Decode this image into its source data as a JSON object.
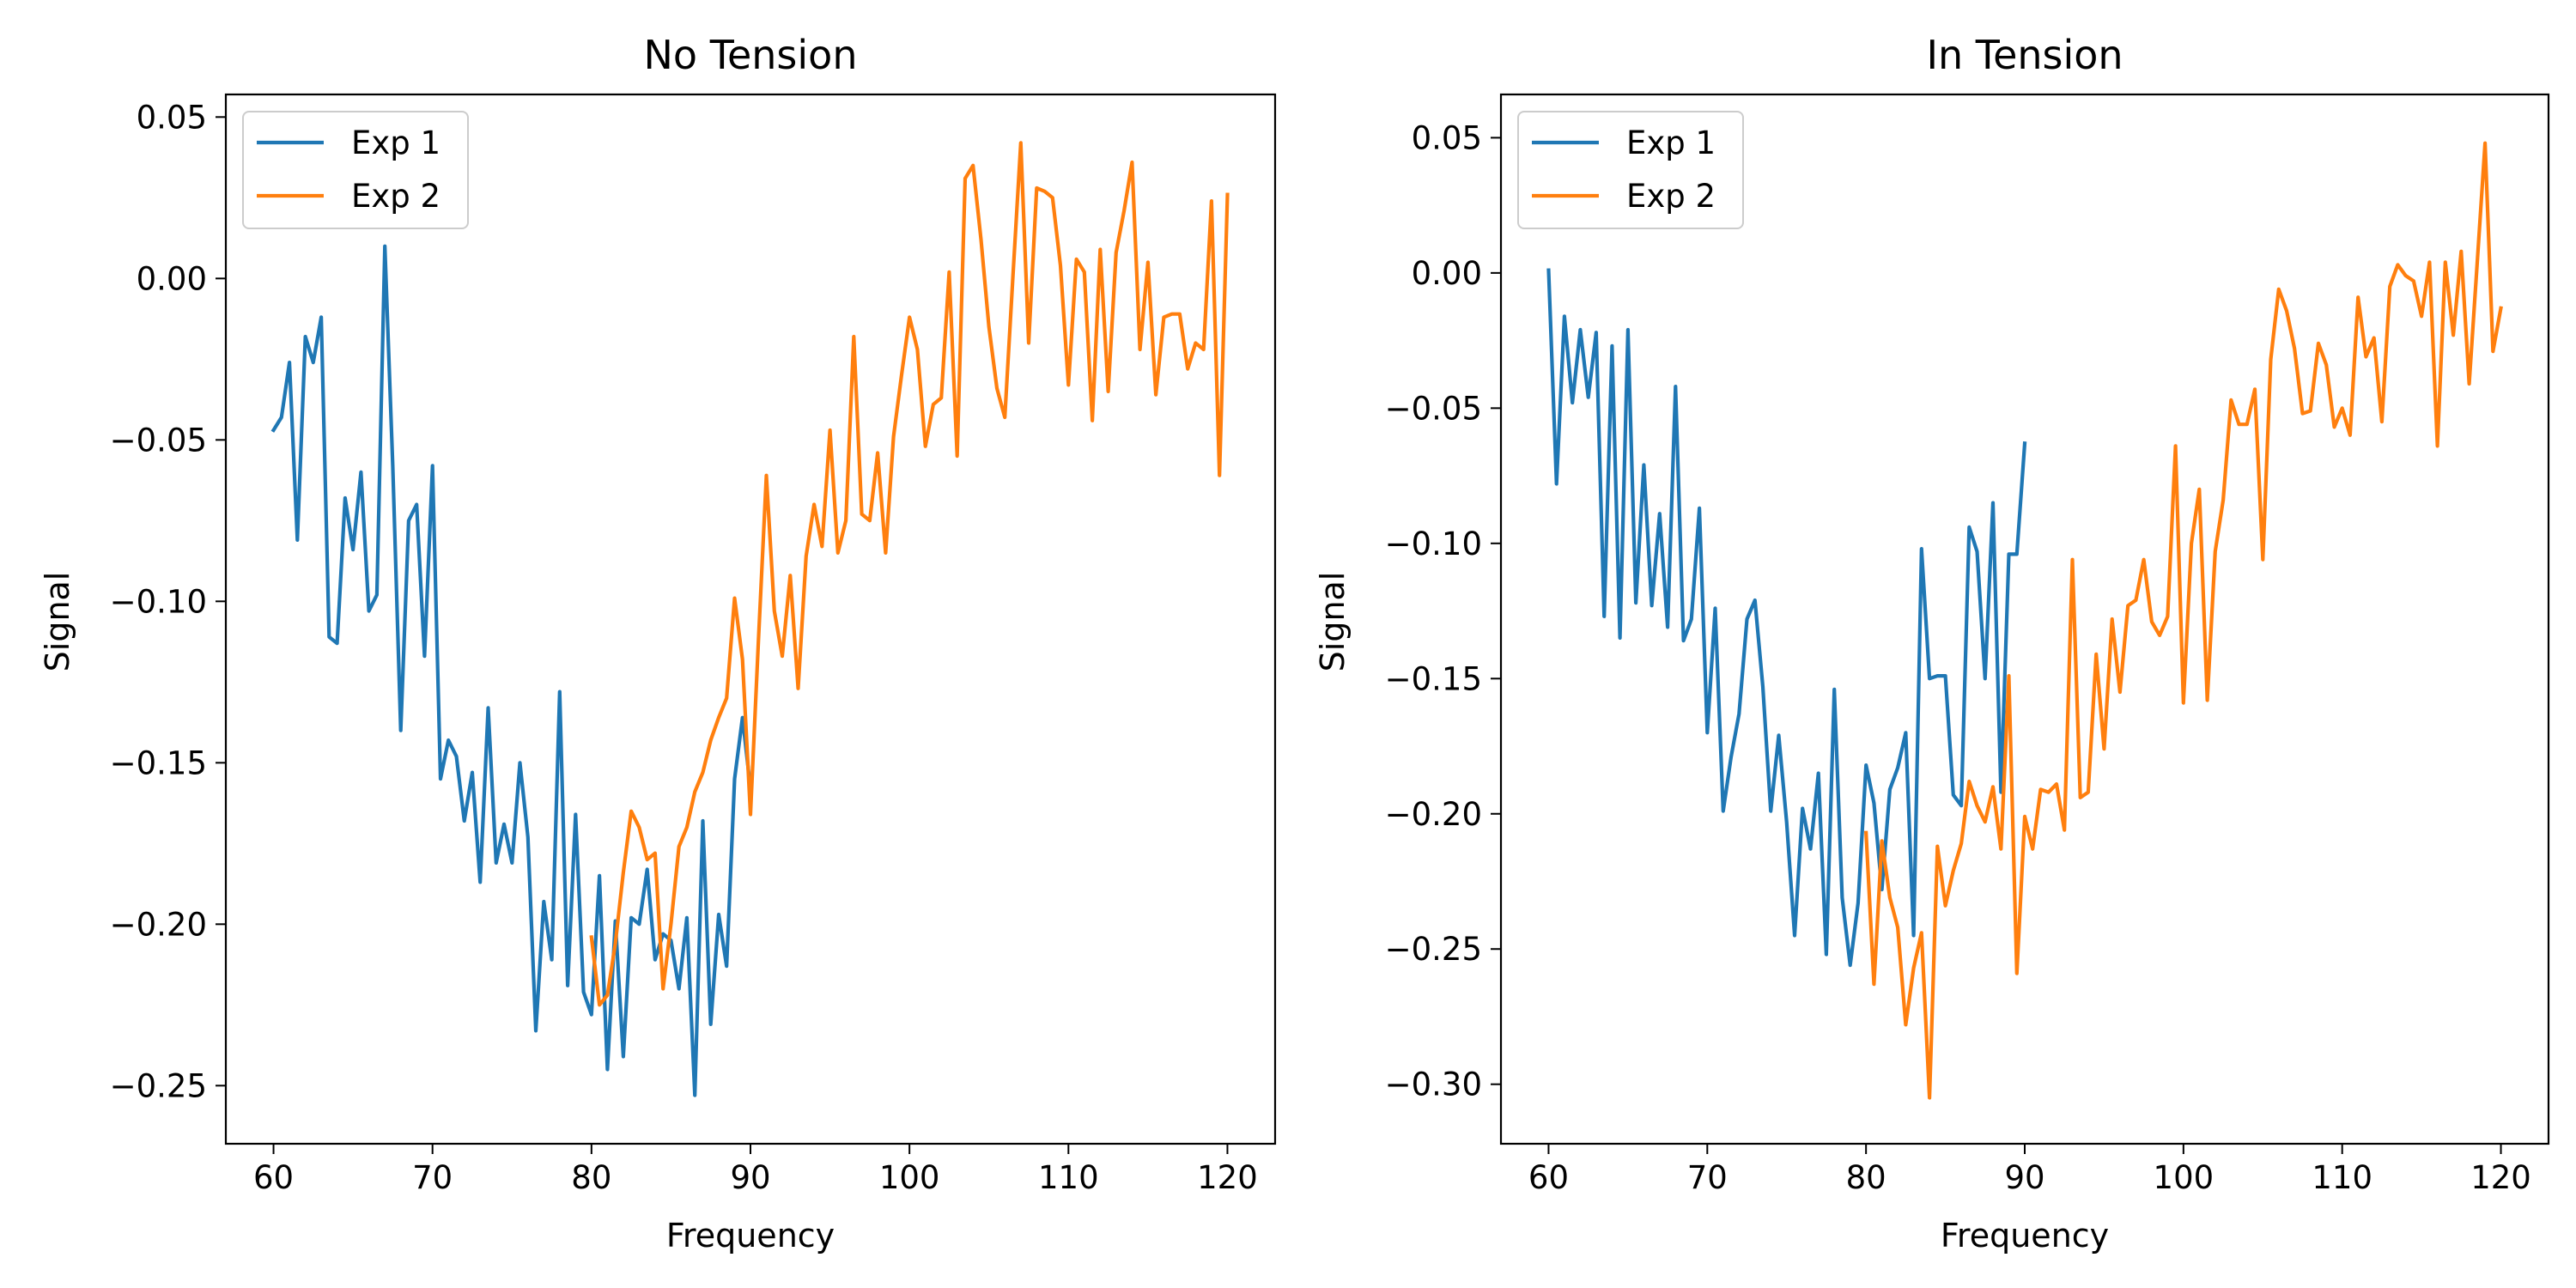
{
  "chart_data": [
    {
      "type": "line",
      "title": "No Tension",
      "xlabel": "Frequency",
      "ylabel": "Signal",
      "xlim": [
        57,
        123
      ],
      "ylim": [
        -0.268,
        0.057
      ],
      "xticks": [
        60,
        70,
        80,
        90,
        100,
        110,
        120
      ],
      "yticks": [
        -0.25,
        -0.2,
        -0.15,
        -0.1,
        -0.05,
        0.0,
        0.05
      ],
      "xtick_labels": [
        "60",
        "70",
        "80",
        "90",
        "100",
        "110",
        "120"
      ],
      "ytick_labels": [
        "−0.25",
        "−0.20",
        "−0.15",
        "−0.10",
        "−0.05",
        "0.00",
        "0.05"
      ],
      "grid": false,
      "legend": "top-left",
      "series": [
        {
          "name": "Exp 1",
          "color": "#1f77b4",
          "x": [
            60,
            60.5,
            61,
            61.5,
            62,
            62.5,
            63,
            63.5,
            64,
            64.5,
            65,
            65.5,
            66,
            66.5,
            67,
            67.5,
            68,
            68.5,
            69,
            69.5,
            70,
            70.5,
            71,
            71.5,
            72,
            72.5,
            73,
            73.5,
            74,
            74.5,
            75,
            75.5,
            76,
            76.5,
            77,
            77.5,
            78,
            78.5,
            79,
            79.5,
            80,
            80.5,
            81,
            81.5,
            82,
            82.5,
            83,
            83.5,
            84,
            84.5,
            85,
            85.5,
            86,
            86.5,
            87,
            87.5,
            88,
            88.5,
            89,
            89.5,
            90
          ],
          "y": [
            -0.047,
            -0.043,
            -0.026,
            -0.081,
            -0.018,
            -0.026,
            -0.012,
            -0.111,
            -0.113,
            -0.068,
            -0.084,
            -0.06,
            -0.103,
            -0.098,
            0.01,
            -0.058,
            -0.14,
            -0.075,
            -0.07,
            -0.117,
            -0.058,
            -0.155,
            -0.143,
            -0.148,
            -0.168,
            -0.153,
            -0.187,
            -0.133,
            -0.181,
            -0.169,
            -0.181,
            -0.15,
            -0.173,
            -0.233,
            -0.193,
            -0.211,
            -0.128,
            -0.219,
            -0.166,
            -0.221,
            -0.228,
            -0.185,
            -0.245,
            -0.199,
            -0.241,
            -0.198,
            -0.2,
            -0.183,
            -0.211,
            -0.203,
            -0.205,
            -0.22,
            -0.198,
            -0.253,
            -0.168,
            -0.231,
            -0.197,
            -0.213,
            -0.155,
            -0.136,
            -0.158
          ],
          "points_note": "approximate"
        },
        {
          "name": "Exp 2",
          "color": "#ff7f0e",
          "x": [
            80,
            80.5,
            81,
            81.5,
            82,
            82.5,
            83,
            83.5,
            84,
            84.5,
            85,
            85.5,
            86,
            86.5,
            87,
            87.5,
            88,
            88.5,
            89,
            89.5,
            90,
            90.5,
            91,
            91.5,
            92,
            92.5,
            93,
            93.5,
            94,
            94.5,
            95,
            95.5,
            96,
            96.5,
            97,
            97.5,
            98,
            98.5,
            99,
            99.5,
            100,
            100.5,
            101,
            101.5,
            102,
            102.5,
            103,
            103.5,
            104,
            104.5,
            105,
            105.5,
            106,
            106.5,
            107,
            107.5,
            108,
            108.5,
            109,
            109.5,
            110,
            110.5,
            111,
            111.5,
            112,
            112.5,
            113,
            113.5,
            114,
            114.5,
            115,
            115.5,
            116,
            116.5,
            117,
            117.5,
            118,
            118.5,
            119,
            119.5,
            120
          ],
          "y": [
            -0.204,
            -0.225,
            -0.222,
            -0.206,
            -0.184,
            -0.165,
            -0.17,
            -0.18,
            -0.178,
            -0.22,
            -0.2,
            -0.176,
            -0.17,
            -0.159,
            -0.153,
            -0.143,
            -0.136,
            -0.13,
            -0.099,
            -0.118,
            -0.166,
            -0.112,
            -0.061,
            -0.103,
            -0.117,
            -0.092,
            -0.127,
            -0.086,
            -0.07,
            -0.083,
            -0.047,
            -0.085,
            -0.075,
            -0.018,
            -0.073,
            -0.075,
            -0.054,
            -0.085,
            -0.049,
            -0.03,
            -0.012,
            -0.022,
            -0.052,
            -0.039,
            -0.037,
            0.002,
            -0.055,
            0.031,
            0.035,
            0.012,
            -0.015,
            -0.034,
            -0.043,
            0.0,
            0.042,
            -0.02,
            0.028,
            0.027,
            0.025,
            0.004,
            -0.033,
            0.006,
            0.002,
            -0.044,
            0.009,
            -0.035,
            0.008,
            0.021,
            0.036,
            -0.022,
            0.005,
            -0.036,
            -0.012,
            -0.011,
            -0.011,
            -0.028,
            -0.02,
            -0.022,
            0.024,
            -0.061,
            0.026
          ],
          "points_note": "approximate"
        }
      ]
    },
    {
      "type": "line",
      "title": "In Tension",
      "xlabel": "Frequency",
      "ylabel": "Signal",
      "xlim": [
        57,
        123
      ],
      "ylim": [
        -0.322,
        0.066
      ],
      "xticks": [
        60,
        70,
        80,
        90,
        100,
        110,
        120
      ],
      "yticks": [
        -0.3,
        -0.25,
        -0.2,
        -0.15,
        -0.1,
        -0.05,
        0.0,
        0.05
      ],
      "xtick_labels": [
        "60",
        "70",
        "80",
        "90",
        "100",
        "110",
        "120"
      ],
      "ytick_labels": [
        "−0.30",
        "−0.25",
        "−0.20",
        "−0.15",
        "−0.10",
        "−0.05",
        "0.00",
        "0.05"
      ],
      "grid": false,
      "legend": "top-left",
      "series": [
        {
          "name": "Exp 1",
          "color": "#1f77b4",
          "x": [
            60,
            60.5,
            61,
            61.5,
            62,
            62.5,
            63,
            63.5,
            64,
            64.5,
            65,
            65.5,
            66,
            66.5,
            67,
            67.5,
            68,
            68.5,
            69,
            69.5,
            70,
            70.5,
            71,
            71.5,
            72,
            72.5,
            73,
            73.5,
            74,
            74.5,
            75,
            75.5,
            76,
            76.5,
            77,
            77.5,
            78,
            78.5,
            79,
            79.5,
            80,
            80.5,
            81,
            81.5,
            82,
            82.5,
            83,
            83.5,
            84,
            84.5,
            85,
            85.5,
            86,
            86.5,
            87,
            87.5,
            88,
            88.5,
            89,
            89.5,
            90
          ],
          "y": [
            0.001,
            -0.078,
            -0.016,
            -0.048,
            -0.021,
            -0.046,
            -0.022,
            -0.127,
            -0.027,
            -0.135,
            -0.021,
            -0.122,
            -0.071,
            -0.123,
            -0.089,
            -0.131,
            -0.042,
            -0.136,
            -0.128,
            -0.087,
            -0.17,
            -0.124,
            -0.199,
            -0.179,
            -0.163,
            -0.128,
            -0.121,
            -0.153,
            -0.199,
            -0.171,
            -0.203,
            -0.245,
            -0.198,
            -0.213,
            -0.185,
            -0.252,
            -0.154,
            -0.231,
            -0.256,
            -0.233,
            -0.182,
            -0.196,
            -0.228,
            -0.191,
            -0.183,
            -0.17,
            -0.245,
            -0.102,
            -0.15,
            -0.149,
            -0.149,
            -0.193,
            -0.197,
            -0.094,
            -0.103,
            -0.15,
            -0.085,
            -0.192,
            -0.104,
            -0.104,
            -0.063
          ],
          "points_note": "approximate"
        },
        {
          "name": "Exp 2",
          "color": "#ff7f0e",
          "x": [
            80,
            80.5,
            81,
            81.5,
            82,
            82.5,
            83,
            83.5,
            84,
            84.5,
            85,
            85.5,
            86,
            86.5,
            87,
            87.5,
            88,
            88.5,
            89,
            89.5,
            90,
            90.5,
            91,
            91.5,
            92,
            92.5,
            93,
            93.5,
            94,
            94.5,
            95,
            95.5,
            96,
            96.5,
            97,
            97.5,
            98,
            98.5,
            99,
            99.5,
            100,
            100.5,
            101,
            101.5,
            102,
            102.5,
            103,
            103.5,
            104,
            104.5,
            105,
            105.5,
            106,
            106.5,
            107,
            107.5,
            108,
            108.5,
            109,
            109.5,
            110,
            110.5,
            111,
            111.5,
            112,
            112.5,
            113,
            113.5,
            114,
            114.5,
            115,
            115.5,
            116,
            116.5,
            117,
            117.5,
            118,
            118.5,
            119,
            119.5,
            120
          ],
          "y": [
            -0.207,
            -0.263,
            -0.21,
            -0.231,
            -0.242,
            -0.278,
            -0.257,
            -0.244,
            -0.305,
            -0.212,
            -0.234,
            -0.221,
            -0.211,
            -0.188,
            -0.197,
            -0.203,
            -0.19,
            -0.213,
            -0.149,
            -0.259,
            -0.201,
            -0.213,
            -0.191,
            -0.192,
            -0.189,
            -0.206,
            -0.106,
            -0.194,
            -0.192,
            -0.141,
            -0.176,
            -0.128,
            -0.155,
            -0.123,
            -0.121,
            -0.106,
            -0.129,
            -0.134,
            -0.127,
            -0.064,
            -0.159,
            -0.1,
            -0.08,
            -0.158,
            -0.103,
            -0.084,
            -0.047,
            -0.056,
            -0.056,
            -0.043,
            -0.106,
            -0.032,
            -0.006,
            -0.014,
            -0.028,
            -0.052,
            -0.051,
            -0.026,
            -0.034,
            -0.057,
            -0.05,
            -0.06,
            -0.009,
            -0.031,
            -0.024,
            -0.055,
            -0.005,
            0.003,
            -0.001,
            -0.003,
            -0.016,
            0.004,
            -0.064,
            0.004,
            -0.023,
            0.008,
            -0.041,
            0.003,
            0.048,
            -0.029,
            -0.013
          ],
          "points_note": "approximate"
        }
      ]
    }
  ]
}
